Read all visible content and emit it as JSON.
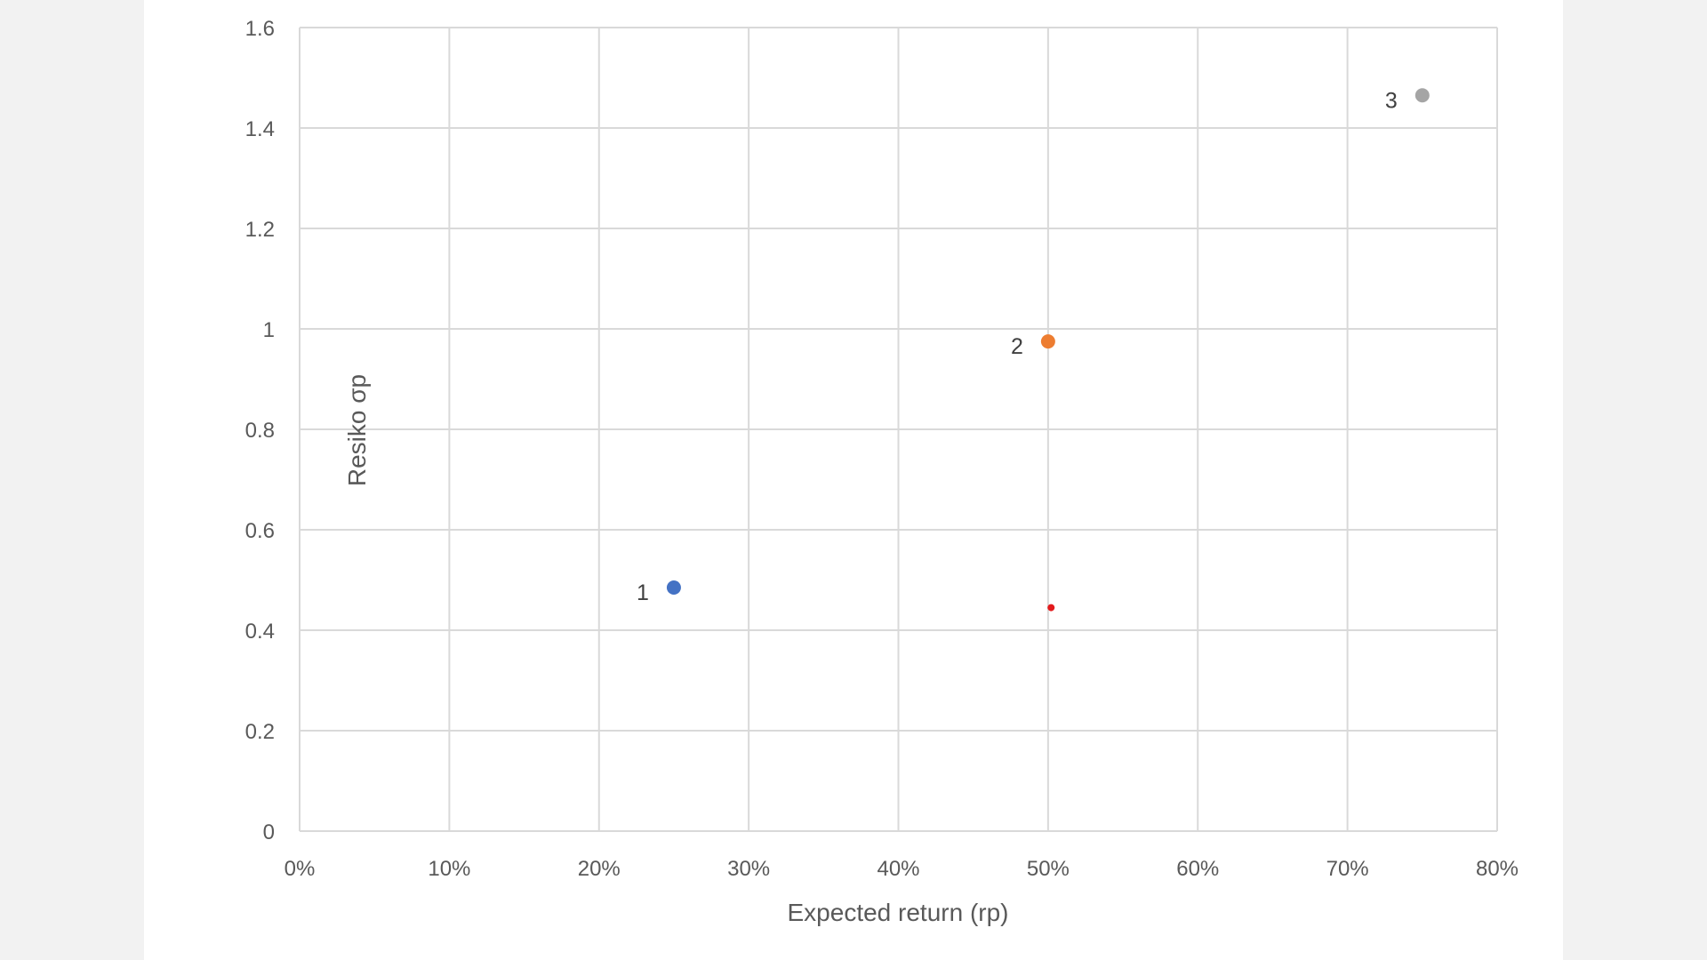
{
  "chart_data": {
    "type": "scatter",
    "xlabel": "Expected return (rp)",
    "ylabel": "Resiko σp",
    "xlim": [
      0,
      0.8
    ],
    "ylim": [
      0,
      1.6
    ],
    "x_ticks": [
      0,
      0.1,
      0.2,
      0.3,
      0.4,
      0.5,
      0.6,
      0.7,
      0.8
    ],
    "x_tick_labels": [
      "0%",
      "10%",
      "20%",
      "30%",
      "40%",
      "50%",
      "60%",
      "70%",
      "80%"
    ],
    "y_ticks": [
      0,
      0.2,
      0.4,
      0.6,
      0.8,
      1.0,
      1.2,
      1.4,
      1.6
    ],
    "y_tick_labels": [
      "0",
      "0.2",
      "0.4",
      "0.6",
      "0.8",
      "1",
      "1.2",
      "1.4",
      "1.6"
    ],
    "grid": true,
    "legend": "none",
    "points": [
      {
        "label": "1",
        "x": 0.25,
        "y": 0.485,
        "color": "#4472c4",
        "size": "large"
      },
      {
        "label": "2",
        "x": 0.5,
        "y": 0.975,
        "color": "#ed7d31",
        "size": "large"
      },
      {
        "label": "3",
        "x": 0.75,
        "y": 1.465,
        "color": "#a5a5a5",
        "size": "large"
      },
      {
        "label": "",
        "x": 0.502,
        "y": 0.445,
        "color": "#e31a1c",
        "size": "small"
      }
    ],
    "gridline_color": "#d9d9d9"
  }
}
